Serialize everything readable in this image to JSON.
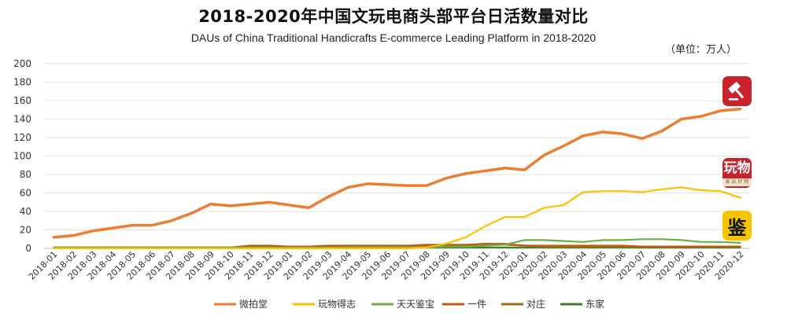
{
  "chart_data": {
    "type": "line",
    "title": "2018-2020年中国文玩电商头部平台日活数量对比",
    "subtitle": "DAUs of China Traditional Handicrafts E-commerce Leading Platform in 2018-2020",
    "unit": "（单位：万人）",
    "ylim": [
      0,
      200
    ],
    "yticks": [
      0,
      20,
      40,
      60,
      80,
      100,
      120,
      140,
      160,
      180,
      200
    ],
    "grid": true,
    "legend_position": "bottom",
    "categories": [
      "2018-01",
      "2018-02",
      "2018-03",
      "2018-04",
      "2018-05",
      "2018-06",
      "2018-07",
      "2018-08",
      "2018-09",
      "2018-10",
      "2018-11",
      "2018-12",
      "2019-01",
      "2019-02",
      "2019-03",
      "2019-04",
      "2019-05",
      "2019-06",
      "2019-07",
      "2019-08",
      "2019-09",
      "2019-10",
      "2019-11",
      "2019-12",
      "2020-01",
      "2020-02",
      "2020-03",
      "2020-04",
      "2020-05",
      "2020-06",
      "2020-07",
      "2020-08",
      "2020-09",
      "2020-10",
      "2020-11",
      "2020-12"
    ],
    "series": [
      {
        "name": "微拍堂",
        "color": "#ed7d31",
        "width": 3.5,
        "values": [
          12,
          14,
          19,
          22,
          25,
          25,
          30,
          38,
          48,
          46,
          48,
          50,
          47,
          44,
          56,
          66,
          70,
          69,
          68,
          68,
          76,
          81,
          84,
          87,
          85,
          101,
          111,
          122,
          126,
          124,
          119,
          127,
          140,
          143,
          149,
          151
        ]
      },
      {
        "name": "玩物得志",
        "color": "#ffc000",
        "width": 2.2,
        "values": [
          0,
          0,
          0,
          0,
          0,
          0,
          0,
          0,
          0,
          0,
          0,
          0,
          0,
          0,
          0,
          0,
          0,
          0,
          0,
          1,
          5,
          12,
          24,
          34,
          34,
          44,
          47,
          61,
          62,
          62,
          61,
          64,
          66,
          63,
          62,
          55
        ]
      },
      {
        "name": "天天鉴宝",
        "color": "#70ad47",
        "width": 2.2,
        "values": [
          1,
          1,
          1,
          1,
          1,
          1,
          1,
          1,
          1,
          1,
          1,
          1,
          1,
          1,
          1,
          1,
          1,
          1,
          1,
          1,
          2,
          2,
          3,
          4,
          9,
          9,
          8,
          7,
          9,
          9,
          10,
          10,
          9,
          7,
          7,
          6
        ]
      },
      {
        "name": "一件",
        "color": "#c55a11",
        "width": 2.2,
        "values": [
          1,
          1,
          1,
          1,
          1,
          1,
          1,
          1,
          1,
          1,
          2,
          2,
          2,
          2,
          2,
          3,
          3,
          3,
          3,
          3,
          3,
          4,
          5,
          5,
          3,
          3,
          3,
          3,
          3,
          3,
          2,
          2,
          2,
          2,
          2,
          2
        ]
      },
      {
        "name": "对庄",
        "color": "#9c6e14",
        "width": 2.2,
        "values": [
          1,
          1,
          1,
          1,
          1,
          1,
          1,
          1,
          1,
          1,
          3,
          3,
          2,
          2,
          3,
          3,
          3,
          3,
          3,
          4,
          4,
          4,
          4,
          4,
          3,
          2,
          2,
          2,
          2,
          2,
          2,
          2,
          2,
          2,
          2,
          2
        ]
      },
      {
        "name": "东家",
        "color": "#3b7d23",
        "width": 2.2,
        "values": [
          1,
          1,
          1,
          1,
          1,
          1,
          1,
          1,
          1,
          1,
          1,
          1,
          1,
          1,
          1,
          1,
          1,
          1,
          1,
          1,
          1,
          1,
          1,
          1,
          1,
          1,
          1,
          1,
          1,
          1,
          1,
          1,
          1,
          1,
          1,
          1
        ]
      }
    ]
  },
  "logos": {
    "weipaitang": {
      "icon": "gavel-icon",
      "color": "#c8232c"
    },
    "wanwu": {
      "icon_text": "玩物",
      "tagline": "爱 玩 好 物",
      "color": "#c8232c"
    },
    "jianbao": {
      "icon_text": "鉴",
      "color": "#f7c400"
    }
  }
}
